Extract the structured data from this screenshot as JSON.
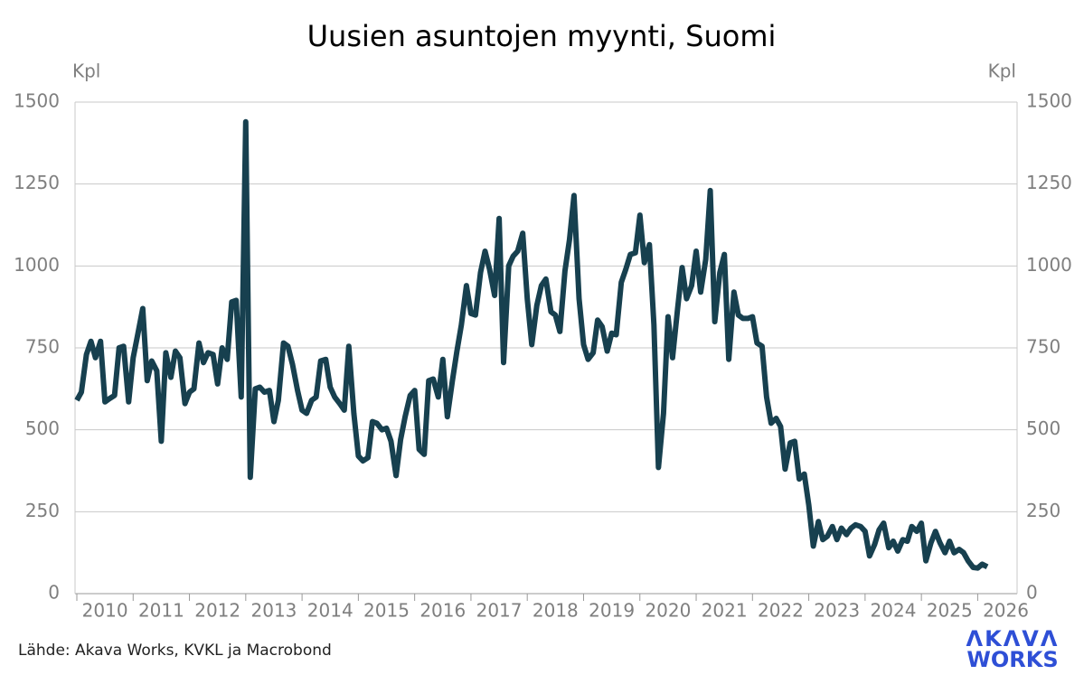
{
  "chart_data": {
    "type": "line",
    "title": "Uusien asuntojen myynti, Suomi",
    "y_label": "Kpl",
    "y2_label": "Kpl",
    "source": "Lähde: Akava Works, KVKL ja Macrobond",
    "logo": [
      "ΛKΛVΛ",
      "WORKS"
    ],
    "xlim": [
      2010,
      2026.7
    ],
    "xticks": [
      2010,
      2011,
      2012,
      2013,
      2014,
      2015,
      2016,
      2017,
      2018,
      2019,
      2020,
      2021,
      2022,
      2023,
      2024,
      2025,
      2026
    ],
    "ylim": [
      0,
      1500
    ],
    "yticks": [
      0,
      250,
      500,
      750,
      1000,
      1250,
      1500
    ],
    "y2lim": [
      0,
      1500
    ],
    "y2ticks": [
      0,
      250,
      500,
      750,
      1000,
      1250,
      1500
    ],
    "grid": true,
    "x": [
      2010.0,
      2010.08,
      2010.17,
      2010.25,
      2010.33,
      2010.42,
      2010.5,
      2010.58,
      2010.67,
      2010.75,
      2010.83,
      2010.92,
      2011.0,
      2011.08,
      2011.17,
      2011.25,
      2011.33,
      2011.42,
      2011.5,
      2011.58,
      2011.67,
      2011.75,
      2011.83,
      2011.92,
      2012.0,
      2012.08,
      2012.17,
      2012.25,
      2012.33,
      2012.42,
      2012.5,
      2012.58,
      2012.67,
      2012.75,
      2012.83,
      2012.92,
      2013.0,
      2013.08,
      2013.17,
      2013.25,
      2013.33,
      2013.42,
      2013.5,
      2013.58,
      2013.67,
      2013.75,
      2013.83,
      2013.92,
      2014.0,
      2014.08,
      2014.17,
      2014.25,
      2014.33,
      2014.42,
      2014.5,
      2014.58,
      2014.67,
      2014.75,
      2014.83,
      2014.92,
      2015.0,
      2015.08,
      2015.17,
      2015.25,
      2015.33,
      2015.42,
      2015.5,
      2015.58,
      2015.67,
      2015.75,
      2015.83,
      2015.92,
      2016.0,
      2016.08,
      2016.17,
      2016.25,
      2016.33,
      2016.42,
      2016.5,
      2016.58,
      2016.67,
      2016.75,
      2016.83,
      2016.92,
      2017.0,
      2017.08,
      2017.17,
      2017.25,
      2017.33,
      2017.42,
      2017.5,
      2017.58,
      2017.67,
      2017.75,
      2017.83,
      2017.92,
      2018.0,
      2018.08,
      2018.17,
      2018.25,
      2018.33,
      2018.42,
      2018.5,
      2018.58,
      2018.67,
      2018.75,
      2018.83,
      2018.92,
      2019.0,
      2019.08,
      2019.17,
      2019.25,
      2019.33,
      2019.42,
      2019.5,
      2019.58,
      2019.67,
      2019.75,
      2019.83,
      2019.92,
      2020.0,
      2020.08,
      2020.17,
      2020.25,
      2020.33,
      2020.42,
      2020.5,
      2020.58,
      2020.67,
      2020.75,
      2020.83,
      2020.92,
      2021.0,
      2021.08,
      2021.17,
      2021.25,
      2021.33,
      2021.42,
      2021.5,
      2021.58,
      2021.67,
      2021.75,
      2021.83,
      2021.92,
      2022.0,
      2022.08,
      2022.17,
      2022.25,
      2022.33,
      2022.42,
      2022.5,
      2022.58,
      2022.67,
      2022.75,
      2022.83,
      2022.92,
      2023.0,
      2023.08,
      2023.17,
      2023.25,
      2023.33,
      2023.42,
      2023.5,
      2023.58,
      2023.67,
      2023.75,
      2023.83,
      2023.92,
      2024.0,
      2024.08,
      2024.17,
      2024.25,
      2024.33,
      2024.42,
      2024.5,
      2024.58,
      2024.67,
      2024.75,
      2024.83,
      2024.92,
      2025.0,
      2025.08,
      2025.17,
      2025.25,
      2025.33,
      2025.42,
      2025.5,
      2025.58,
      2025.67,
      2025.75,
      2025.83,
      2025.92,
      2026.0,
      2026.08,
      2026.17
    ],
    "series": [
      {
        "color": "#17404f",
        "values": [
          590,
          615,
          730,
          770,
          720,
          770,
          585,
          595,
          605,
          750,
          755,
          585,
          720,
          790,
          870,
          650,
          710,
          680,
          465,
          735,
          660,
          740,
          720,
          580,
          615,
          625,
          765,
          705,
          735,
          730,
          640,
          750,
          715,
          890,
          895,
          600,
          1440,
          355,
          625,
          630,
          615,
          620,
          525,
          590,
          765,
          755,
          700,
          620,
          560,
          550,
          590,
          600,
          710,
          715,
          630,
          600,
          580,
          560,
          755,
          550,
          420,
          405,
          415,
          525,
          520,
          500,
          505,
          465,
          360,
          470,
          540,
          605,
          620,
          440,
          425,
          650,
          655,
          600,
          715,
          540,
          650,
          740,
          820,
          940,
          855,
          850,
          980,
          1045,
          990,
          910,
          1145,
          705,
          1000,
          1030,
          1045,
          1100,
          900,
          760,
          880,
          940,
          960,
          860,
          850,
          800,
          985,
          1080,
          1215,
          900,
          760,
          715,
          735,
          835,
          815,
          740,
          795,
          790,
          950,
          990,
          1035,
          1040,
          1155,
          1010,
          1065,
          820,
          385,
          550,
          845,
          720,
          870,
          995,
          900,
          940,
          1045,
          920,
          1020,
          1230,
          830,
          980,
          1035,
          715,
          920,
          850,
          840,
          840,
          845,
          765,
          755,
          600,
          520,
          535,
          510,
          380,
          460,
          465,
          350,
          365,
          270,
          145,
          220,
          165,
          175,
          205,
          165,
          200,
          180,
          200,
          210,
          205,
          190,
          115,
          150,
          195,
          215,
          140,
          160,
          130,
          165,
          160,
          205,
          190,
          215,
          100,
          155,
          190,
          155,
          125,
          160,
          125,
          135,
          125,
          100,
          80,
          78,
          90,
          82
        ]
      }
    ]
  }
}
